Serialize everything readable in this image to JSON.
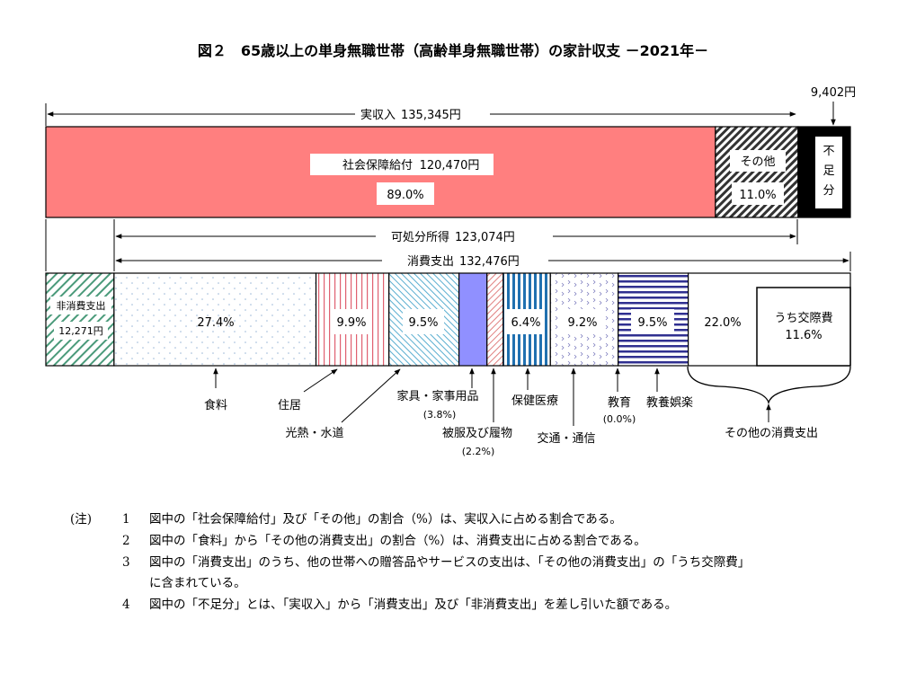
{
  "chart_data": {
    "type": "bar",
    "title": "図２　65歳以上の単身無職世帯（高齢単身無職世帯）の家計収支 －2021年－",
    "income_bar": {
      "total_label": "実収入",
      "total_value": "135,345円",
      "segments": [
        {
          "name": "社会保障給付",
          "value": 120470,
          "value_label": "120,470円",
          "percent": "89.0%",
          "color": "#ff7f7f",
          "pattern": "solid"
        },
        {
          "name": "その他",
          "value": 14875,
          "percent": "11.0%",
          "color": "#333333",
          "pattern": "diagonal-hatch"
        }
      ],
      "deficit": {
        "name": "不足分",
        "value": 9402,
        "value_label": "9,402円",
        "color": "#000000"
      }
    },
    "disposable_income": {
      "label": "可処分所得",
      "value": "123,074円"
    },
    "expenditure_bar": {
      "total_label": "消費支出",
      "total_value": "132,476円",
      "non_consumption": {
        "name": "非消費支出",
        "value": 12271,
        "value_label": "12,271円",
        "color": "#4a9a7a"
      },
      "categories": [
        {
          "name": "食料",
          "percent": 27.4,
          "label": "27.4%",
          "color": "#9bb8d8"
        },
        {
          "name": "住居",
          "percent": 9.9,
          "label": "9.9%",
          "color": "#e06070"
        },
        {
          "name": "光熱・水道",
          "percent": 9.5,
          "label": "9.5%",
          "color": "#5aaed0"
        },
        {
          "name": "家具・家事用品",
          "percent": 3.8,
          "label": "(3.8%)",
          "color": "#9090ff"
        },
        {
          "name": "被服及び履物",
          "percent": 2.2,
          "label": "(2.2%)",
          "color": "#e08080"
        },
        {
          "name": "保健医療",
          "percent": 6.4,
          "label": "6.4%",
          "color": "#2070b0"
        },
        {
          "name": "交通・通信",
          "percent": 9.2,
          "label": "9.2%",
          "color": "#8080c0"
        },
        {
          "name": "教育",
          "percent": 0.0,
          "label": "(0.0%)",
          "color": "#000000"
        },
        {
          "name": "教養娯楽",
          "percent": 9.5,
          "label": "9.5%",
          "color": "#303090"
        },
        {
          "name": "その他の消費支出",
          "percent": 22.0,
          "label": "22.0%",
          "color": "#ffffff"
        }
      ],
      "sub_item": {
        "name": "うち交際費",
        "percent": 11.6,
        "label": "11.6%"
      }
    }
  },
  "notes": {
    "heading": "(注)",
    "items": [
      {
        "num": "1",
        "text": "図中の「社会保障給付」及び「その他」の割合（%）は、実収入に占める割合である。"
      },
      {
        "num": "2",
        "text": "図中の「食料」から「その他の消費支出」の割合（%）は、消費支出に占める割合である。"
      },
      {
        "num": "3",
        "text": "図中の「消費支出」のうち、他の世帯への贈答品やサービスの支出は、「その他の消費支出」の「うち交際費」"
      },
      {
        "num": "",
        "text": "に含まれている。"
      },
      {
        "num": "4",
        "text": "図中の「不足分」とは、「実収入」から「消費支出」及び「非消費支出」を差し引いた額である。"
      }
    ]
  }
}
